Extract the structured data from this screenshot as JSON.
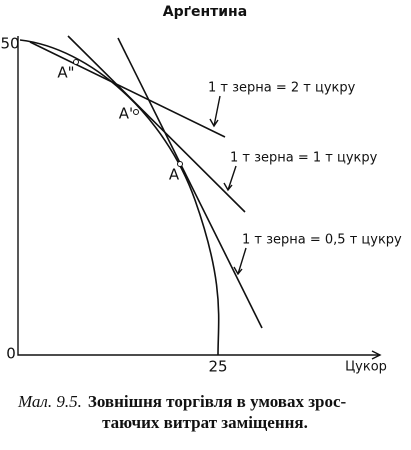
{
  "title": "Арґентина",
  "axis": {
    "y_top": "50",
    "origin": "0",
    "x_mark": "25",
    "x_label": "Цукор"
  },
  "points": [
    "A\"",
    "A'",
    "A"
  ],
  "lines": [
    "1 т зерна = 2 т цукру",
    "1 т зерна = 1 т цукру",
    "1 т зерна = 0,5 т цукру"
  ],
  "caption": {
    "number": "Мал. 9.5.",
    "lines": [
      "Зовнішня торгівля в умовах зрос-",
      "таючих витрат заміщення."
    ]
  }
}
